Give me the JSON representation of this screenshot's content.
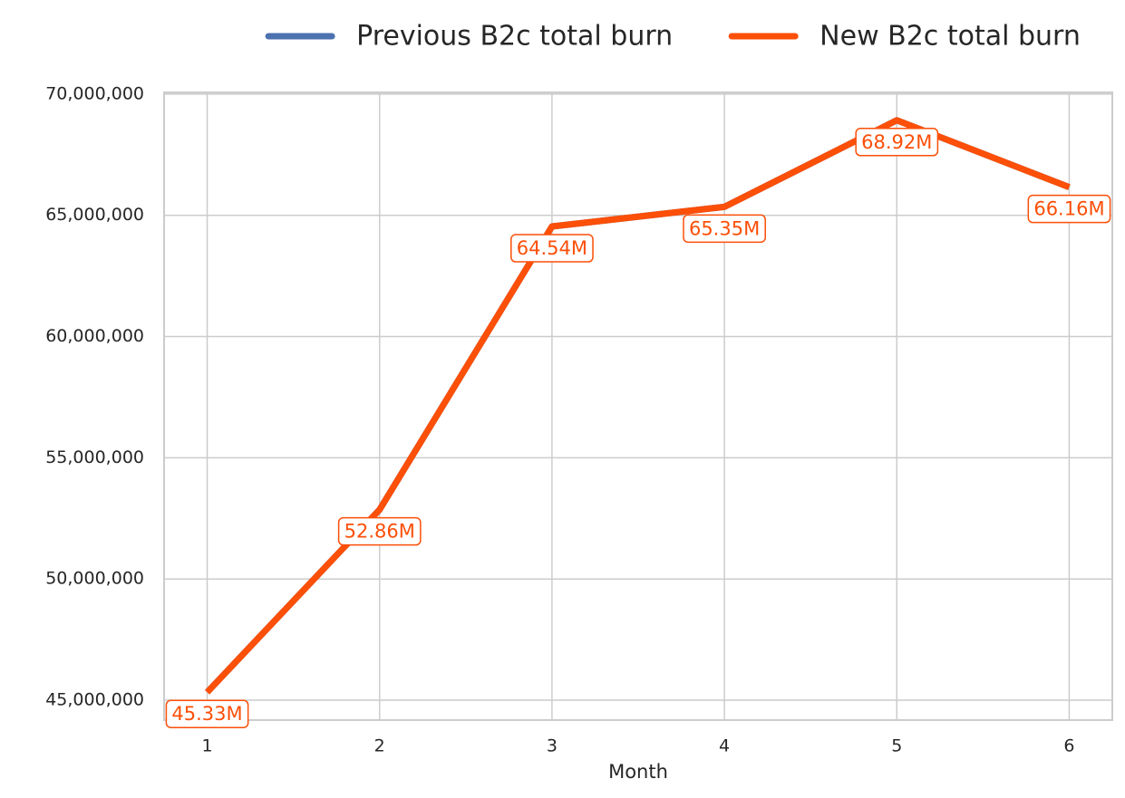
{
  "chart_data": {
    "type": "line",
    "xlabel": "Month",
    "x": [
      1,
      2,
      3,
      4,
      5,
      6
    ],
    "series": [
      {
        "name": "Previous B2c total burn",
        "color": "#4c72b0",
        "values": [
          45330000,
          52860000,
          64540000,
          65350000,
          68920000,
          66160000
        ]
      },
      {
        "name": "New B2c total burn",
        "color": "#fc4f08",
        "values": [
          45330000,
          52860000,
          64540000,
          65350000,
          68920000,
          66160000
        ],
        "value_labels": [
          "45.33M",
          "52.86M",
          "64.54M",
          "65.35M",
          "68.92M",
          "66.16M"
        ]
      }
    ],
    "xlim": [
      0.75,
      6.25
    ],
    "xticks": [
      1,
      2,
      3,
      4,
      5,
      6
    ],
    "ylim": [
      44180000,
      70070000
    ],
    "yticks": [
      {
        "value": 45000000,
        "label": "45,000,000"
      },
      {
        "value": 50000000,
        "label": "50,000,000"
      },
      {
        "value": 55000000,
        "label": "55,000,000"
      },
      {
        "value": 60000000,
        "label": "60,000,000"
      },
      {
        "value": 65000000,
        "label": "65,000,000"
      },
      {
        "value": 70000000,
        "label": "70,000,000"
      }
    ],
    "grid": true,
    "legend": "top"
  }
}
